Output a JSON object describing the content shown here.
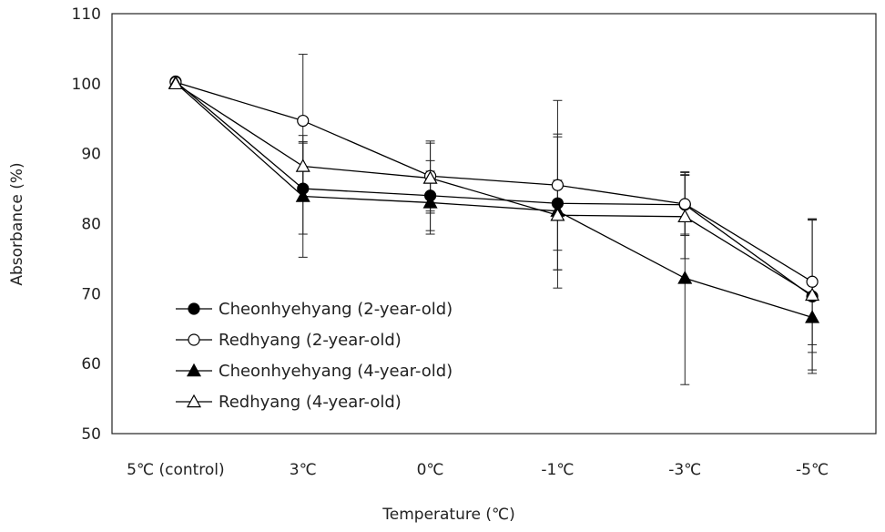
{
  "chart_data": {
    "type": "line",
    "title": "",
    "xlabel": "Temperature (℃)",
    "ylabel": "Absorbance (%)",
    "categories": [
      "5℃ (control)",
      "3℃",
      "0℃",
      "-1℃",
      "-3℃",
      "-5℃"
    ],
    "ylim": [
      50,
      110
    ],
    "yticks": [
      50,
      60,
      70,
      80,
      90,
      100,
      110
    ],
    "grid": false,
    "legend_position": "bottom-left",
    "series": [
      {
        "name": "Cheonhyehyang (2-year-old)",
        "marker": "filled-circle",
        "values": [
          100.3,
          85.0,
          84.0,
          82.9,
          82.7,
          69.6
        ],
        "errors": [
          0.5,
          6.5,
          5.0,
          9.5,
          4.2,
          11.0
        ]
      },
      {
        "name": "Redhyang (2-year-old)",
        "marker": "open-circle",
        "values": [
          100.2,
          94.7,
          86.8,
          85.5,
          82.8,
          71.7
        ],
        "errors": [
          0.5,
          9.5,
          5.0,
          12.1,
          4.5,
          9.0
        ]
      },
      {
        "name": "Cheonhyehyang (4-year-old)",
        "marker": "filled-triangle",
        "values": [
          100.1,
          83.9,
          83.0,
          81.8,
          72.2,
          66.6
        ],
        "errors": [
          0.5,
          8.7,
          4.5,
          11.0,
          15.2,
          5.0
        ]
      },
      {
        "name": "Redhyang (4-year-old)",
        "marker": "open-triangle",
        "values": [
          100.0,
          88.2,
          86.5,
          81.2,
          81.0,
          69.8
        ],
        "errors": [
          0.5,
          3.5,
          5.0,
          5.0,
          6.0,
          10.7
        ]
      }
    ]
  }
}
